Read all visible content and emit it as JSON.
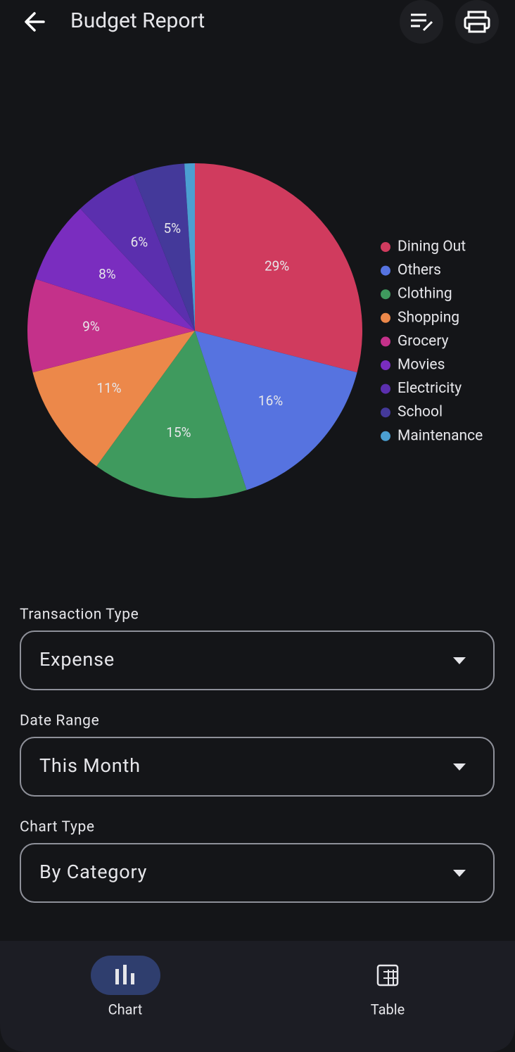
{
  "header": {
    "title": "Budget Report"
  },
  "chart_data": {
    "type": "pie",
    "categories": [
      "Dining Out",
      "Others",
      "Clothing",
      "Shopping",
      "Grocery",
      "Movies",
      "Electricity",
      "School",
      "Maintenance"
    ],
    "values": [
      29,
      16,
      15,
      11,
      9,
      8,
      6,
      5,
      1
    ],
    "value_labels": [
      "29%",
      "16%",
      "15%",
      "11%",
      "9%",
      "8%",
      "6%",
      "5%",
      null
    ],
    "colors": [
      "#d03b5e",
      "#5673e0",
      "#3f9a5e",
      "#ec884a",
      "#c4318a",
      "#7a2dbf",
      "#5b2fae",
      "#44399a",
      "#4b9fd1"
    ],
    "legend": "right"
  },
  "form": {
    "fields": [
      {
        "label": "Transaction Type",
        "value": "Expense"
      },
      {
        "label": "Date Range",
        "value": "This Month"
      },
      {
        "label": "Chart Type",
        "value": "By Category"
      }
    ]
  },
  "nav": {
    "items": [
      {
        "label": "Chart"
      },
      {
        "label": "Table"
      }
    ]
  }
}
